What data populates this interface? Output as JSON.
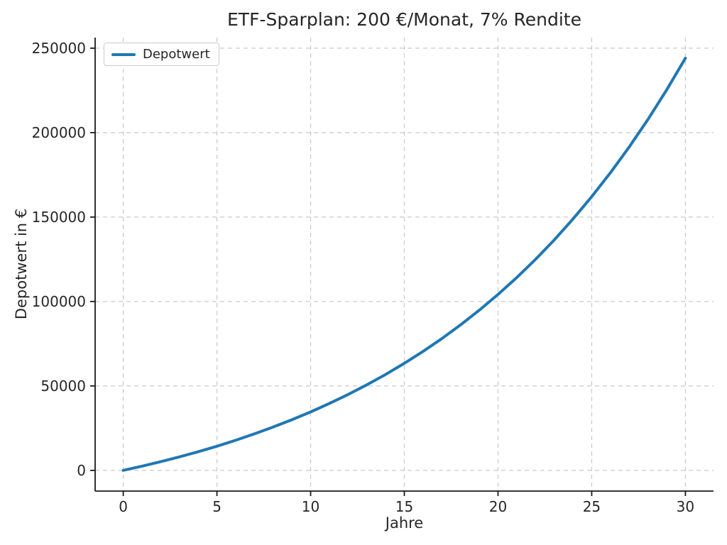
{
  "chart_data": {
    "type": "line",
    "title": "ETF-Sparplan: 200 €/Monat, 7% Rendite",
    "xlabel": "Jahre",
    "ylabel": "Depotwert in €",
    "xlim": [
      -1.5,
      31.5
    ],
    "ylim": [
      -12250,
      256250
    ],
    "xticks": [
      0,
      5,
      10,
      15,
      20,
      25,
      30
    ],
    "yticks": [
      0,
      50000,
      100000,
      150000,
      200000,
      250000
    ],
    "grid": "dashed",
    "legend_position": "upper left",
    "series": [
      {
        "name": "Depotwert",
        "color": "#1f77b4",
        "x": [
          0,
          1,
          2,
          3,
          4,
          5,
          6,
          7,
          8,
          9,
          10,
          11,
          12,
          13,
          14,
          15,
          16,
          17,
          18,
          19,
          20,
          21,
          22,
          23,
          24,
          25,
          26,
          27,
          28,
          29,
          30
        ],
        "values": [
          0,
          2479,
          5136,
          7986,
          11042,
          14319,
          17832,
          21600,
          25640,
          29968,
          34617,
          39597,
          44937,
          50665,
          56807,
          63392,
          70454,
          78027,
          86148,
          94855,
          104193,
          114205,
          124941,
          136455,
          148800,
          162039,
          176234,
          191456,
          207779,
          225282,
          244050
        ]
      }
    ]
  },
  "style": {
    "line_color": "#1f77b4",
    "grid_color": "#c9c9c9",
    "spine_color": "#1a1a1a",
    "text_color": "#262626",
    "background": "#ffffff"
  },
  "legend": {
    "label": "Depotwert"
  }
}
